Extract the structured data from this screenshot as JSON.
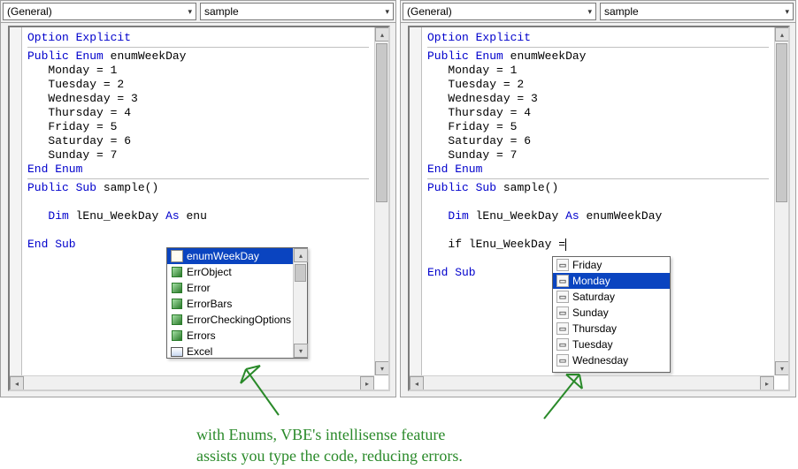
{
  "dropdowns": {
    "scope": "(General)",
    "proc": "sample"
  },
  "code": {
    "option_explicit": "Option Explicit",
    "public": "Public",
    "enum": "Enum",
    "enum_name": "enumWeekDay",
    "days": {
      "mon": "Monday = 1",
      "tue": "Tuesday = 2",
      "wed": "Wednesday = 3",
      "thu": "Thursday = 4",
      "fri": "Friday = 5",
      "sat": "Saturday = 6",
      "sun": "Sunday = 7"
    },
    "end_enum": "End Enum",
    "sub": "Sub",
    "sub_name": "sample()",
    "dim": "Dim",
    "var": "lEnu_WeekDay",
    "as": "As",
    "left_partial": "enu",
    "right_full": "enumWeekDay",
    "if_kw": "if",
    "eq": " =",
    "end_sub": "End Sub"
  },
  "intellisense_left": {
    "items": [
      {
        "icon": "enum",
        "label": "enumWeekDay",
        "selected": true
      },
      {
        "icon": "class",
        "label": "ErrObject"
      },
      {
        "icon": "class",
        "label": "Error"
      },
      {
        "icon": "class",
        "label": "ErrorBars"
      },
      {
        "icon": "class",
        "label": "ErrorCheckingOptions"
      },
      {
        "icon": "class",
        "label": "Errors"
      },
      {
        "icon": "module",
        "label": "Excel"
      }
    ]
  },
  "intellisense_right": {
    "items": [
      {
        "icon": "member",
        "label": "Friday"
      },
      {
        "icon": "member",
        "label": "Monday",
        "selected": true
      },
      {
        "icon": "member",
        "label": "Saturday"
      },
      {
        "icon": "member",
        "label": "Sunday"
      },
      {
        "icon": "member",
        "label": "Thursday"
      },
      {
        "icon": "member",
        "label": "Tuesday"
      },
      {
        "icon": "member",
        "label": "Wednesday"
      }
    ]
  },
  "caption": {
    "line1": "with Enums, VBE's intellisense feature",
    "line2": "assists you type the code, reducing errors."
  },
  "colors": {
    "keyword": "#0000cc",
    "arrow": "#2a8a2a",
    "caption": "#2a8a2a",
    "selection_bg": "#0a44c0"
  }
}
